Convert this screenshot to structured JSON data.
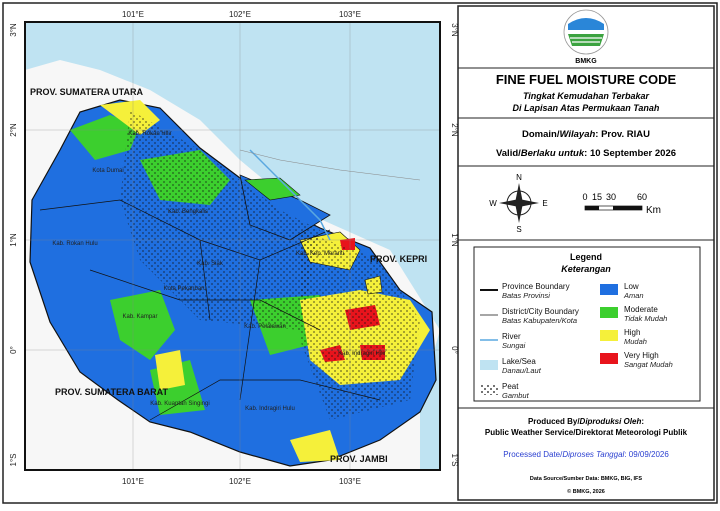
{
  "map": {
    "lon_labels": [
      "101°E",
      "102°E",
      "103°E"
    ],
    "lat_labels": [
      "3°N",
      "2°N",
      "1°N",
      "0°",
      "1°S"
    ],
    "province_labels": [
      "PROV. SUMATERA UTARA",
      "PROV. SUMATERA BARAT",
      "PROV. JAMBI",
      "PROV. KEPRI"
    ],
    "region_labels": [
      "Kab. Rokan Hilir",
      "Kab. Rokan Hulu",
      "Kota Dumai",
      "Kab. Bengkalis",
      "Kab. Siak",
      "Kota Pekanbaru",
      "Kab. Kampar",
      "Kab. Pelalawan",
      "Kab. Kep. Meranti",
      "Kab. Kuantan Singingi",
      "Kab. Indragiri Hulu",
      "Kab. Indragiri Hilir"
    ]
  },
  "header": {
    "logo_text": "BMKG",
    "title": "FINE FUEL MOISTURE CODE",
    "subtitle_1": "Tingkat Kemudahan Terbakar",
    "subtitle_2": "Di Lapisan Atas Permukaan Tanah"
  },
  "info": {
    "domain_en": "Domain/",
    "domain_id": "Wilayah",
    "domain_value": ": Prov. RIAU",
    "valid_en": "Valid/",
    "valid_id": "Berlaku untuk",
    "valid_value": ": 10 September 2026"
  },
  "compass": {
    "north": "N",
    "east": "E",
    "south": "S",
    "west": "W"
  },
  "scale": {
    "ticks": [
      "0",
      "15",
      "30",
      "60"
    ],
    "unit": "Km"
  },
  "legend": {
    "title": "Legend",
    "subtitle": "Keterangan",
    "lines": [
      {
        "label": "Province Boundary",
        "label_id": "Batas Provinsi"
      },
      {
        "label": "District/City Boundary",
        "label_id": "Batas Kabupaten/Kota"
      },
      {
        "label": "River",
        "label_id": "Sungai"
      },
      {
        "label": "Lake/Sea",
        "label_id": "Danau/Laut"
      },
      {
        "label": "Peat",
        "label_id": "Gambut"
      }
    ],
    "classes": [
      {
        "label": "Low",
        "label_id": "Aman",
        "color": "#1f6fe0"
      },
      {
        "label": "Moderate",
        "label_id": "Tidak Mudah",
        "color": "#3ccf2e"
      },
      {
        "label": "High",
        "label_id": "Mudah",
        "color": "#f5f03a"
      },
      {
        "label": "Very High",
        "label_id": "Sangat Mudah",
        "color": "#e8141c"
      }
    ]
  },
  "footer": {
    "produced_en": "Produced By/",
    "produced_id": "Diproduksi Oleh",
    "produced_colon": ":",
    "producer": "Public Weather Service/Direktorat Meteorologi Publik",
    "processed_en": "Processed Date/",
    "processed_id": "Diproses Tanggal",
    "processed_value": ": 09/09/2026",
    "source": "Data Source/Sumber Data: BMKG, BIG, IFS",
    "copyright": "© BMKG, 2026"
  }
}
